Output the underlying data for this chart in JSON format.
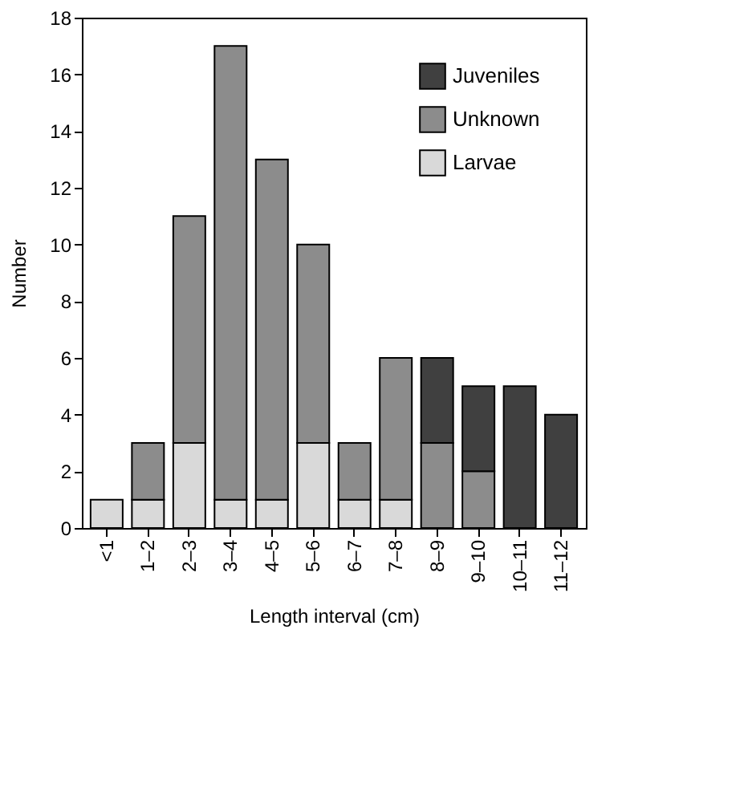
{
  "chart_data": {
    "type": "bar",
    "stacked": true,
    "xlabel": "Length interval (cm)",
    "ylabel": "Number",
    "categories": [
      "<1",
      "1–2",
      "2–3",
      "3–4",
      "4–5",
      "5–6",
      "6–7",
      "7–8",
      "8–9",
      "9–10",
      "10–11",
      "11–12"
    ],
    "series": [
      {
        "name": "Larvae",
        "color": "#d9d9d9",
        "values": [
          1,
          1,
          3,
          1,
          1,
          3,
          1,
          1,
          null,
          null,
          null,
          null
        ]
      },
      {
        "name": "Unknown",
        "color": "#8c8c8c",
        "values": [
          null,
          2,
          8,
          16,
          12,
          7,
          2,
          5,
          3,
          2,
          null,
          null
        ]
      },
      {
        "name": "Juveniles",
        "color": "#404040",
        "values": [
          null,
          null,
          null,
          null,
          null,
          null,
          null,
          null,
          3,
          3,
          5,
          4
        ]
      }
    ],
    "ylim": [
      0,
      18
    ],
    "yticks": [
      0,
      2,
      4,
      6,
      8,
      10,
      12,
      14,
      16,
      18
    ],
    "grid": false,
    "legend": "top right"
  }
}
